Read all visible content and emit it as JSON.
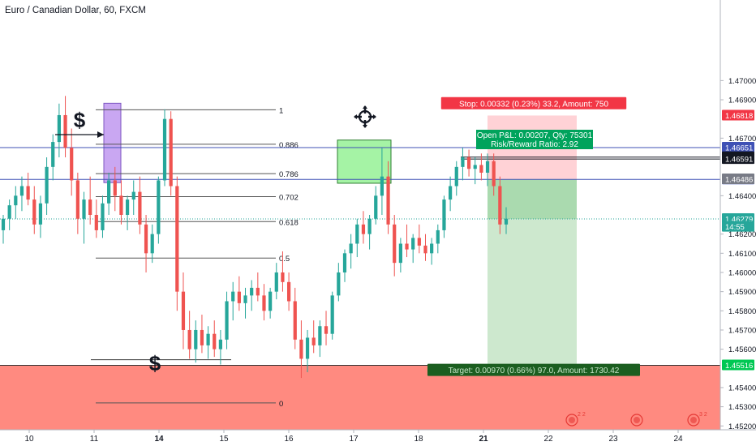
{
  "chart_data": {
    "type": "candlestick",
    "title": "Euro / Canadian Dollar, 60, FXCM",
    "symbol": "EURCAD",
    "interval": "60",
    "ylim": [
      1.4518,
      1.4742
    ],
    "y_ticks": [
      "1.47000",
      "1.46900",
      "1.46700",
      "1.46400",
      "1.46200",
      "1.46100",
      "1.46000",
      "1.45900",
      "1.45800",
      "1.45700",
      "1.45600",
      "1.45400",
      "1.45300",
      "1.45200"
    ],
    "x_ticks": [
      "10",
      "11",
      "14",
      "15",
      "16",
      "17",
      "18",
      "21",
      "22",
      "23",
      "24"
    ],
    "colors": {
      "up": "#26a69a",
      "down": "#ef5350",
      "stop_zone": "#ffcdd2",
      "target_zone": "#c8e6c9",
      "support_zone": "#ff8a80",
      "hline": "#3f51b5",
      "fib": "#555555"
    },
    "fib_levels": [
      {
        "ratio": "1",
        "price": 1.46848
      },
      {
        "ratio": "0.886",
        "price": 1.46668
      },
      {
        "ratio": "0.786",
        "price": 1.46515
      },
      {
        "ratio": "0.702",
        "price": 1.46395
      },
      {
        "ratio": "0.618",
        "price": 1.46265
      },
      {
        "ratio": "0.5",
        "price": 1.46075
      },
      {
        "ratio": "0",
        "price": 1.4532
      }
    ],
    "horizontal_lines": [
      {
        "price": 1.46651,
        "label": "1.46651",
        "color": "#3f51b5"
      },
      {
        "price": 1.46485,
        "label": "1.46485",
        "color": "#3f51b5"
      }
    ],
    "position": {
      "side": "long",
      "entry": 1.46485,
      "stop": 1.46818,
      "target": 1.45516,
      "stop_label": "Stop: 0.00332 (0.23%) 33.2, Amount: 750",
      "target_label": "Target: 0.00970 (0.66%) 97.0, Amount: 1730.42",
      "pnl_label": "Open P&L: 0.00207, Qty: 75301",
      "rr_label": "Risk/Reward Ratio: 2.92"
    },
    "price_badges": [
      {
        "price": 1.46818,
        "label": "1.46818",
        "bg": "#f23645",
        "fg": "#ffffff"
      },
      {
        "price": 1.46651,
        "label": "1.46651",
        "bg": "#3f51b5",
        "fg": "#ffffff"
      },
      {
        "price": 1.46601,
        "label": "1.46601",
        "bg": "#131722",
        "fg": "#ffffff"
      },
      {
        "price": 1.46591,
        "label": "1.46591",
        "bg": "#131722",
        "fg": "#ffffff"
      },
      {
        "price": 1.46485,
        "label": "1.46485",
        "bg": "#3f51b5",
        "fg": "#ffffff"
      },
      {
        "price": 1.46486,
        "label": "1.46486",
        "bg": "#787b86",
        "fg": "#ffffff"
      },
      {
        "price": 1.46279,
        "label": "1.46279",
        "bg": "#26a69a",
        "fg": "#ffffff"
      },
      {
        "price": 1.46238,
        "label": "14:55",
        "bg": "#26a69a",
        "fg": "#ffffff"
      },
      {
        "price": 1.45516,
        "label": "1.45516",
        "bg": "#00c853",
        "fg": "#ffffff"
      }
    ],
    "current_price": 1.46279,
    "annotations": [
      {
        "text": "$",
        "x": 98,
        "y": 157
      },
      {
        "text": "$",
        "x": 191,
        "y": 457
      }
    ],
    "event_markers": [
      {
        "label": "2 2",
        "x": 705
      },
      {
        "label": "",
        "x": 785
      },
      {
        "label": "3 2",
        "x": 855
      }
    ],
    "candles_ohlc": [
      [
        1.4622,
        1.463,
        1.4615,
        1.4628
      ],
      [
        1.4628,
        1.4638,
        1.4622,
        1.4635
      ],
      [
        1.4635,
        1.4645,
        1.4628,
        1.464
      ],
      [
        1.464,
        1.465,
        1.4632,
        1.4645
      ],
      [
        1.4645,
        1.4652,
        1.4635,
        1.4638
      ],
      [
        1.4638,
        1.4645,
        1.462,
        1.4625
      ],
      [
        1.4625,
        1.464,
        1.4618,
        1.4636
      ],
      [
        1.4636,
        1.466,
        1.463,
        1.4655
      ],
      [
        1.4655,
        1.4672,
        1.4648,
        1.4668
      ],
      [
        1.4668,
        1.4688,
        1.466,
        1.4682
      ],
      [
        1.4682,
        1.4692,
        1.466,
        1.4665
      ],
      [
        1.4665,
        1.4675,
        1.464,
        1.4648
      ],
      [
        1.4648,
        1.4652,
        1.462,
        1.4628
      ],
      [
        1.4628,
        1.4642,
        1.4615,
        1.4638
      ],
      [
        1.4638,
        1.465,
        1.4625,
        1.463
      ],
      [
        1.463,
        1.4638,
        1.4618,
        1.4622
      ],
      [
        1.4622,
        1.464,
        1.4618,
        1.4636
      ],
      [
        1.4636,
        1.4652,
        1.463,
        1.4648
      ],
      [
        1.4648,
        1.4655,
        1.4632,
        1.464
      ],
      [
        1.464,
        1.4648,
        1.4625,
        1.463
      ],
      [
        1.463,
        1.464,
        1.4622,
        1.4638
      ],
      [
        1.4638,
        1.4648,
        1.463,
        1.4642
      ],
      [
        1.4642,
        1.465,
        1.462,
        1.4625
      ],
      [
        1.4625,
        1.463,
        1.46,
        1.461
      ],
      [
        1.461,
        1.4625,
        1.4605,
        1.462
      ],
      [
        1.462,
        1.465,
        1.4615,
        1.4648
      ],
      [
        1.4648,
        1.4685,
        1.4645,
        1.468
      ],
      [
        1.468,
        1.4684,
        1.464,
        1.4645
      ],
      [
        1.4645,
        1.465,
        1.458,
        1.459
      ],
      [
        1.459,
        1.46,
        1.456,
        1.457
      ],
      [
        1.457,
        1.458,
        1.4555,
        1.456
      ],
      [
        1.456,
        1.4575,
        1.4553,
        1.457
      ],
      [
        1.457,
        1.4578,
        1.4558,
        1.4562
      ],
      [
        1.4562,
        1.4572,
        1.4555,
        1.4568
      ],
      [
        1.4568,
        1.4575,
        1.4556,
        1.456
      ],
      [
        1.456,
        1.457,
        1.4552,
        1.4565
      ],
      [
        1.4565,
        1.459,
        1.456,
        1.4585
      ],
      [
        1.4585,
        1.4595,
        1.4575,
        1.459
      ],
      [
        1.459,
        1.4598,
        1.458,
        1.4584
      ],
      [
        1.4584,
        1.4592,
        1.4576,
        1.4588
      ],
      [
        1.4588,
        1.4596,
        1.458,
        1.4592
      ],
      [
        1.4592,
        1.46,
        1.4585,
        1.4588
      ],
      [
        1.4588,
        1.4594,
        1.4575,
        1.458
      ],
      [
        1.458,
        1.4592,
        1.4576,
        1.459
      ],
      [
        1.459,
        1.4605,
        1.4586,
        1.46
      ],
      [
        1.46,
        1.4611,
        1.459,
        1.4595
      ],
      [
        1.4595,
        1.46,
        1.458,
        1.4585
      ],
      [
        1.4585,
        1.4592,
        1.456,
        1.4565
      ],
      [
        1.4565,
        1.4575,
        1.4545,
        1.4555
      ],
      [
        1.4555,
        1.457,
        1.4548,
        1.4566
      ],
      [
        1.4566,
        1.4575,
        1.4558,
        1.4562
      ],
      [
        1.4562,
        1.4575,
        1.4556,
        1.4572
      ],
      [
        1.4572,
        1.458,
        1.4562,
        1.4568
      ],
      [
        1.4568,
        1.459,
        1.4565,
        1.4588
      ],
      [
        1.4588,
        1.4605,
        1.4585,
        1.46
      ],
      [
        1.46,
        1.4612,
        1.4595,
        1.461
      ],
      [
        1.461,
        1.462,
        1.4602,
        1.4615
      ],
      [
        1.4615,
        1.4628,
        1.4608,
        1.4625
      ],
      [
        1.4625,
        1.4632,
        1.4615,
        1.462
      ],
      [
        1.462,
        1.463,
        1.4612,
        1.4628
      ],
      [
        1.4628,
        1.4645,
        1.4625,
        1.464
      ],
      [
        1.464,
        1.4665,
        1.463,
        1.465
      ],
      [
        1.465,
        1.4658,
        1.462,
        1.4625
      ],
      [
        1.4625,
        1.463,
        1.4598,
        1.4605
      ],
      [
        1.4605,
        1.4618,
        1.46,
        1.4615
      ],
      [
        1.4615,
        1.4625,
        1.4608,
        1.4612
      ],
      [
        1.4612,
        1.462,
        1.4605,
        1.4618
      ],
      [
        1.4618,
        1.4625,
        1.461,
        1.4614
      ],
      [
        1.4614,
        1.462,
        1.4606,
        1.461
      ],
      [
        1.461,
        1.4618,
        1.4604,
        1.4615
      ],
      [
        1.4615,
        1.4625,
        1.461,
        1.4622
      ],
      [
        1.4622,
        1.464,
        1.4618,
        1.4638
      ],
      [
        1.4638,
        1.465,
        1.4632,
        1.4645
      ],
      [
        1.4645,
        1.4658,
        1.464,
        1.4655
      ],
      [
        1.4655,
        1.4665,
        1.4648,
        1.466
      ],
      [
        1.466,
        1.4664,
        1.465,
        1.4654
      ],
      [
        1.4654,
        1.466,
        1.4646,
        1.4656
      ],
      [
        1.4656,
        1.4662,
        1.4648,
        1.4652
      ],
      [
        1.4652,
        1.4662,
        1.4645,
        1.4658
      ],
      [
        1.4658,
        1.4662,
        1.464,
        1.4645
      ],
      [
        1.4645,
        1.465,
        1.462,
        1.4625
      ],
      [
        1.4625,
        1.4634,
        1.462,
        1.4628
      ]
    ]
  },
  "icons": {
    "target_marker": "crosshair-icon"
  }
}
